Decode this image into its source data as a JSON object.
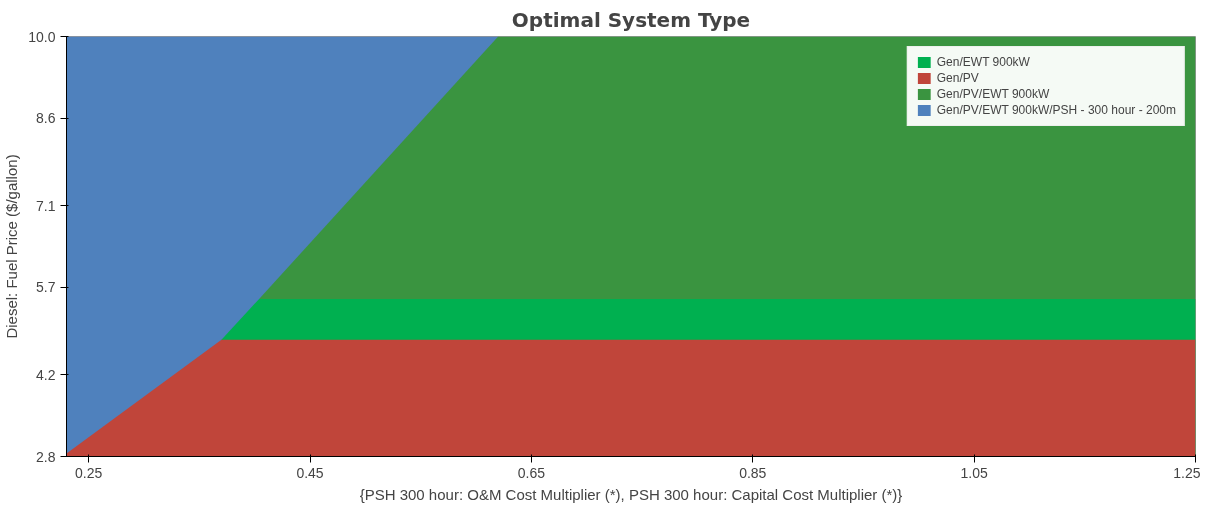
{
  "chart_data": {
    "type": "area",
    "title": "Optimal System Type",
    "xlabel": "{PSH 300 hour: O&M Cost Multiplier (*), PSH 300 hour: Capital Cost Multiplier (*)}",
    "ylabel": "Diesel: Fuel Price ($/gallon)",
    "x": [
      0.23,
      0.37,
      0.404,
      0.62,
      1.25
    ],
    "series": [
      {
        "name": "Gen/EWT 900kW",
        "color": "#00b050",
        "values": [
          null,
          4.8,
          5.5,
          5.5,
          5.5
        ]
      },
      {
        "name": "Gen/PV",
        "color": "#c0453a",
        "values": [
          2.85,
          4.8,
          4.8,
          4.8,
          4.8
        ]
      },
      {
        "name": "Gen/PV/EWT 900kW",
        "color": "#3a9440",
        "values": [
          null,
          null,
          5.5,
          10,
          10
        ]
      },
      {
        "name": "Gen/PV/EWT 900kW/PSH - 300 hour - 200m",
        "color": "#4f81bd",
        "values": [
          10,
          10,
          10,
          10,
          null
        ]
      }
    ],
    "xlim": [
      0.23,
      1.25
    ],
    "ylim": [
      2.8,
      10.0
    ],
    "xticks": [
      0.25,
      0.45,
      0.65,
      0.85,
      1.05,
      1.25
    ],
    "yticks": [
      2.8,
      4.2,
      5.7,
      7.1,
      8.6,
      {
        "value": 10.0,
        "label": "10.0"
      }
    ],
    "grid": false,
    "legend": "top right"
  }
}
